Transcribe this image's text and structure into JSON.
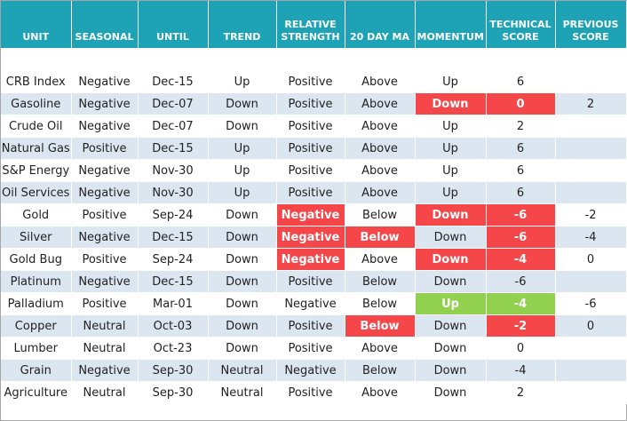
{
  "table": {
    "headers": [
      "UNIT",
      "SEASONAL",
      "UNTIL",
      "TREND",
      "RELATIVE STRENGTH",
      "20 DAY MA",
      "MOMENTUM",
      "TECHNICAL SCORE",
      "PREVIOUS SCORE"
    ],
    "rows": [
      [
        "CRB Index",
        "Negative",
        "Dec-15",
        "Up",
        "Positive",
        "Above",
        "Up",
        "6",
        null
      ],
      [
        "Gasoline",
        "Negative",
        "Dec-07",
        "Down",
        "Positive",
        "Above",
        "Down",
        "0",
        "2"
      ],
      [
        "Crude Oil",
        "Negative",
        "Dec-07",
        "Down",
        "Positive",
        "Above",
        "Up",
        "2",
        null
      ],
      [
        "Natural Gas",
        "Positive",
        "Dec-15",
        "Up",
        "Positive",
        "Above",
        "Up",
        "6",
        null
      ],
      [
        "S&P Energy",
        "Negative",
        "Nov-30",
        "Up",
        "Positive",
        "Above",
        "Up",
        "6",
        null
      ],
      [
        "Oil Services",
        "Negative",
        "Nov-30",
        "Up",
        "Positive",
        "Above",
        "Up",
        "6",
        null
      ],
      [
        "Gold",
        "Positive",
        "Sep-24",
        "Down",
        "Negative",
        "Below",
        "Down",
        "-6",
        "-2"
      ],
      [
        "Silver",
        "Negative",
        "Dec-15",
        "Down",
        "Negative",
        "Below",
        "Down",
        "-6",
        "-4"
      ],
      [
        "Gold Bug",
        "Positive",
        "Sep-24",
        "Down",
        "Negative",
        "Above",
        "Down",
        "-4",
        "0"
      ],
      [
        "Platinum",
        "Negative",
        "Dec-15",
        "Down",
        "Positive",
        "Below",
        "Down",
        "-6",
        null
      ],
      [
        "Palladium",
        "Positive",
        "Mar-01",
        "Down",
        "Negative",
        "Below",
        "Up",
        "-4",
        "-6"
      ],
      [
        "Copper",
        "Neutral",
        "Oct-03",
        "Down",
        "Positive",
        "Below",
        "Down",
        "-2",
        "0"
      ],
      [
        "Lumber",
        "Neutral",
        "Oct-23",
        "Down",
        "Positive",
        "Above",
        "Down",
        "0",
        null
      ],
      [
        "Grain",
        "Negative",
        "Sep-30",
        "Neutral",
        "Negative",
        "Below",
        "Down",
        "-4",
        null
      ],
      [
        "Agriculture",
        "Neutral",
        "Sep-30",
        "Neutral",
        "Positive",
        "Above",
        "Down",
        "2",
        null
      ]
    ]
  }
}
